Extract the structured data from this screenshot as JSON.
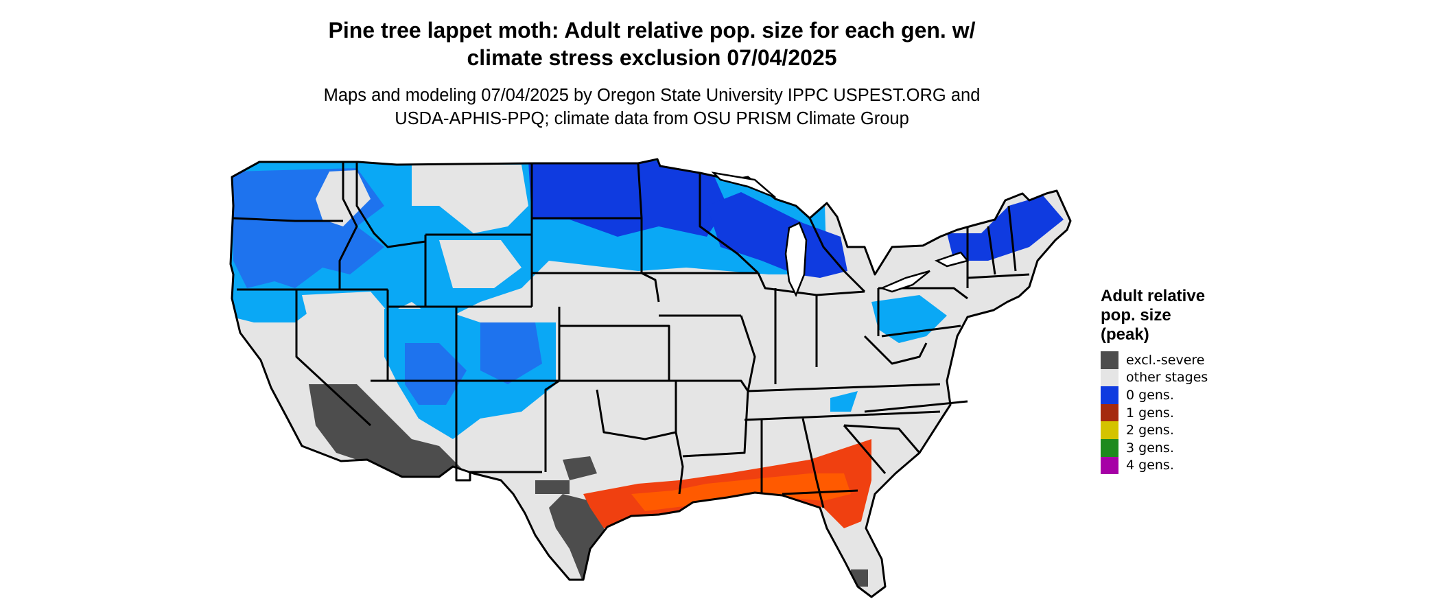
{
  "title": {
    "line1": "Pine tree lappet moth: Adult relative pop. size for each gen. w/",
    "line2": "climate stress exclusion 07/04/2025"
  },
  "subtitle": {
    "line1": "Maps and modeling 07/04/2025 by Oregon State University IPPC USPEST.ORG and",
    "line2": "USDA-APHIS-PPQ; climate data from OSU PRISM Climate Group"
  },
  "colors": {
    "excluded": "#4d4d4d",
    "other_stages": "#e5e5e5",
    "gen0": "#0f3be0",
    "gen0_mid": "#1e73ee",
    "gen0_light": "#0aa8f5",
    "gen1": "#a52a0f",
    "gen1_map": "#f04010",
    "gen1_bright": "#ff5a00",
    "gen2": "#d4c300",
    "gen3": "#1e8a1e",
    "gen4": "#a600a6",
    "border": "#000000"
  },
  "legend": {
    "title_lines": [
      "Adult relative",
      "pop. size",
      "(peak)"
    ],
    "items": [
      {
        "label": "excl.-severe",
        "color": "#4d4d4d"
      },
      {
        "label": "other stages",
        "color": "#e5e5e5"
      },
      {
        "label": "0 gens.",
        "color": "#0f3be0"
      },
      {
        "label": "1 gens.",
        "color": "#a52a0f"
      },
      {
        "label": "2 gens.",
        "color": "#d4c300"
      },
      {
        "label": "3 gens.",
        "color": "#1e8a1e"
      },
      {
        "label": "4 gens.",
        "color": "#a600a6"
      }
    ]
  }
}
